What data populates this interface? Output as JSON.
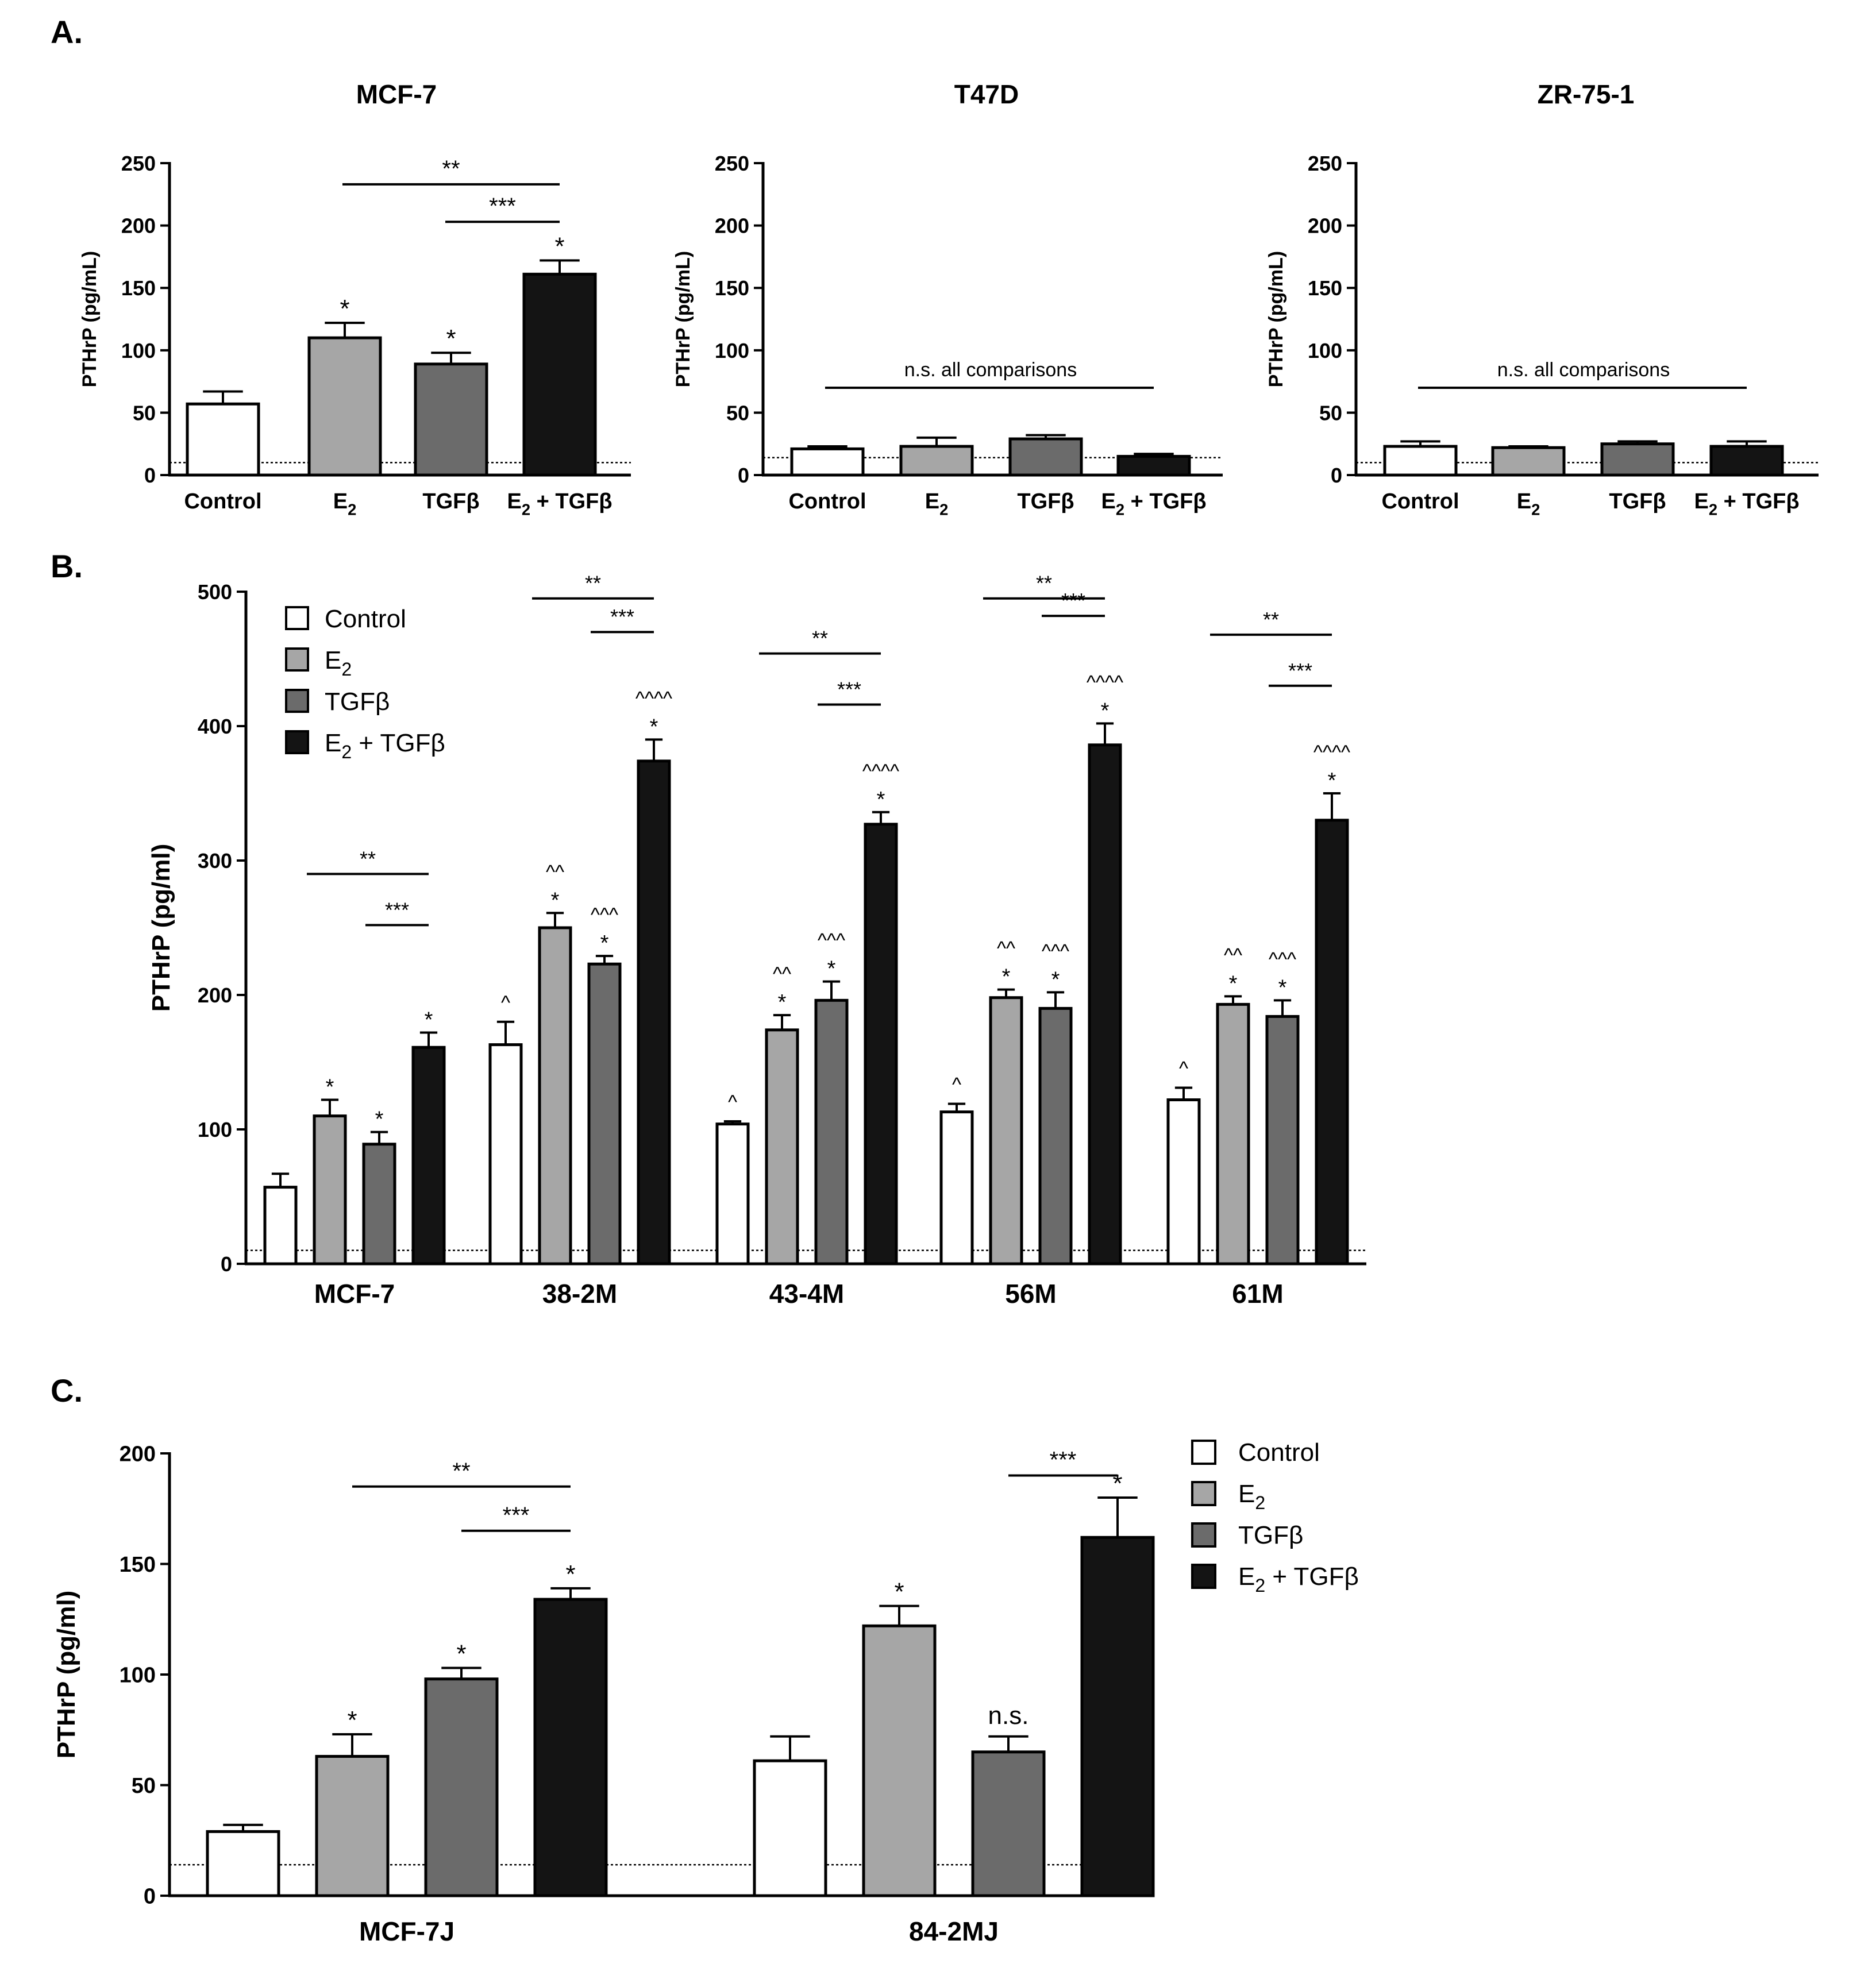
{
  "panel_labels": {
    "a": "A.",
    "b": "B.",
    "c": "C."
  },
  "colors": {
    "control": "#ffffff",
    "e2": "#a6a6a6",
    "tgfb": "#6b6b6b",
    "combo": "#141414",
    "stroke": "#000000"
  },
  "chart_data": [
    {
      "id": "A1",
      "type": "bar",
      "title": "MCF-7",
      "ylabel": "PTHrP (pg/mL)",
      "ylim": [
        0,
        250
      ],
      "yticks": [
        0,
        50,
        100,
        150,
        200,
        250
      ],
      "categories": [
        "Control",
        "E2",
        "TGFβ",
        "E2 + TGFβ"
      ],
      "values": [
        57,
        110,
        89,
        161
      ],
      "errors": [
        10,
        12,
        9,
        11
      ],
      "marks": [
        "",
        "*",
        "*",
        "*"
      ],
      "detection_limit": 10,
      "comparisons": [
        {
          "from": 1,
          "to": 3,
          "label": "**"
        },
        {
          "from": 2,
          "to": 3,
          "label": "***"
        }
      ]
    },
    {
      "id": "A2",
      "type": "bar",
      "title": "T47D",
      "ylabel": "PTHrP (pg/mL)",
      "ylim": [
        0,
        250
      ],
      "yticks": [
        0,
        50,
        100,
        150,
        200,
        250
      ],
      "categories": [
        "Control",
        "E2",
        "TGFβ",
        "E2 + TGFβ"
      ],
      "values": [
        21,
        23,
        29,
        15
      ],
      "errors": [
        2,
        7,
        3,
        2
      ],
      "marks": [
        "",
        "",
        "",
        ""
      ],
      "detection_limit": 14,
      "comparisons": [
        {
          "from": 0,
          "to": 3,
          "label": "n.s. all comparisons"
        }
      ]
    },
    {
      "id": "A3",
      "type": "bar",
      "title": "ZR-75-1",
      "ylabel": "PTHrP (pg/mL)",
      "ylim": [
        0,
        250
      ],
      "yticks": [
        0,
        50,
        100,
        150,
        200,
        250
      ],
      "categories": [
        "Control",
        "E2",
        "TGFβ",
        "E2 + TGFβ"
      ],
      "values": [
        23,
        22,
        25,
        23
      ],
      "errors": [
        4,
        1,
        2,
        4
      ],
      "marks": [
        "",
        "",
        "",
        ""
      ],
      "detection_limit": 10,
      "comparisons": [
        {
          "from": 0,
          "to": 3,
          "label": "n.s. all comparisons"
        }
      ]
    },
    {
      "id": "B",
      "type": "bar",
      "title": "",
      "ylabel": "PTHrP (pg/ml)",
      "ylim": [
        0,
        500
      ],
      "yticks": [
        0,
        100,
        200,
        300,
        400,
        500
      ],
      "categories": [
        "MCF-7",
        "38-2M",
        "43-4M",
        "56M",
        "61M"
      ],
      "series": [
        {
          "name": "Control",
          "values": [
            57,
            163,
            104,
            113,
            122
          ],
          "errors": [
            10,
            17,
            2,
            6,
            9
          ],
          "marks": [
            "",
            "^",
            "^",
            "^",
            "^"
          ]
        },
        {
          "name": "E2",
          "values": [
            110,
            250,
            174,
            198,
            193
          ],
          "errors": [
            12,
            11,
            11,
            6,
            6
          ],
          "marks": [
            "*",
            "*|^^",
            "*|^^",
            "*|^^",
            "*|^^"
          ]
        },
        {
          "name": "TGFβ",
          "values": [
            89,
            223,
            196,
            190,
            184
          ],
          "errors": [
            9,
            6,
            14,
            12,
            12
          ],
          "marks": [
            "*",
            "*|^^^",
            "*|^^^",
            "*|^^^",
            "*|^^^"
          ]
        },
        {
          "name": "E2 + TGFβ",
          "values": [
            161,
            374,
            327,
            386,
            330
          ],
          "errors": [
            11,
            16,
            9,
            16,
            20
          ],
          "marks": [
            "*",
            "*|^^^^",
            "*|^^^^",
            "*|^^^^",
            "*|^^^^"
          ]
        }
      ],
      "detection_limit": 10,
      "comparisons": [
        {
          "group": 0,
          "from": 1,
          "to": 3,
          "label": "**"
        },
        {
          "group": 0,
          "from": 2,
          "to": 3,
          "label": "***"
        },
        {
          "group": 1,
          "from": 1,
          "to": 3,
          "label": "**"
        },
        {
          "group": 1,
          "from": 2,
          "to": 3,
          "label": "***"
        },
        {
          "group": 2,
          "from": 1,
          "to": 3,
          "label": "**"
        },
        {
          "group": 2,
          "from": 2,
          "to": 3,
          "label": "***"
        },
        {
          "group": 3,
          "from": 1,
          "to": 3,
          "label": "**"
        },
        {
          "group": 3,
          "from": 2,
          "to": 3,
          "label": "***"
        },
        {
          "group": 4,
          "from": 1,
          "to": 3,
          "label": "**"
        },
        {
          "group": 4,
          "from": 2,
          "to": 3,
          "label": "***"
        }
      ],
      "legend": {
        "position": "top-left"
      }
    },
    {
      "id": "C",
      "type": "bar",
      "title": "",
      "ylabel": "PTHrP (pg/ml)",
      "ylim": [
        0,
        200
      ],
      "yticks": [
        0,
        50,
        100,
        150,
        200
      ],
      "categories": [
        "MCF-7J",
        "84-2MJ"
      ],
      "series": [
        {
          "name": "Control",
          "values": [
            29,
            61
          ],
          "errors": [
            3,
            11
          ],
          "marks": [
            "",
            ""
          ]
        },
        {
          "name": "E2",
          "values": [
            63,
            122
          ],
          "errors": [
            10,
            9
          ],
          "marks": [
            "*",
            "*"
          ]
        },
        {
          "name": "TGFβ",
          "values": [
            98,
            65
          ],
          "errors": [
            5,
            7
          ],
          "marks": [
            "*",
            "n.s."
          ]
        },
        {
          "name": "E2 + TGFβ",
          "values": [
            134,
            162
          ],
          "errors": [
            5,
            18
          ],
          "marks": [
            "*",
            "*"
          ]
        }
      ],
      "detection_limit": 14,
      "comparisons": [
        {
          "group": 0,
          "from": 1,
          "to": 3,
          "label": "**"
        },
        {
          "group": 0,
          "from": 2,
          "to": 3,
          "label": "***"
        },
        {
          "group": 1,
          "from": 2,
          "to": 3,
          "label": "***"
        }
      ],
      "legend": {
        "position": "right"
      }
    }
  ],
  "legend_labels": {
    "control": "Control",
    "e2_main": "E",
    "e2_sub": "2",
    "tgfb": "TGFβ",
    "combo_main": "E",
    "combo_sub": "2",
    "combo_rest": " + TGFβ"
  }
}
